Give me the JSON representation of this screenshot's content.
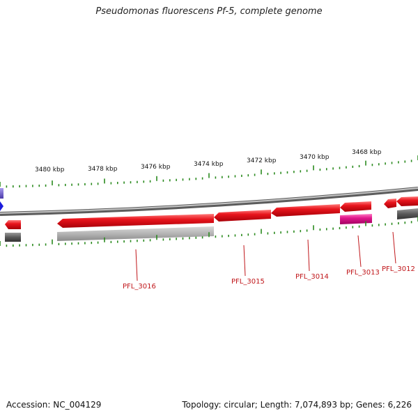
{
  "title": "Pseudomonas fluorescens Pf-5, complete genome",
  "footer": {
    "accession": "Accession: NC_004129",
    "summary": "Topology: circular; Length: 7,074,893 bp; Genes: 6,226"
  },
  "scale_labels": [
    "3480 kbp",
    "3478 kbp",
    "3476 kbp",
    "3474 kbp",
    "3472 kbp",
    "3470 kbp",
    "3468 kbp"
  ],
  "gene_labels": [
    "PFL_3016",
    "PFL_3015",
    "PFL_3014",
    "PFL_3013",
    "PFL_3012"
  ],
  "colors": {
    "tick_mark": "#2a8a1e",
    "backbone": "#8a8a8a",
    "cds_red": "#e8141c",
    "cds_magenta": "#e0188c",
    "gray_feature": "#a8a8a8",
    "dark_feature": "#5a5a5a",
    "purple_feature": "#6a5acd",
    "blue_feature": "#1b1bdc",
    "label_red": "#c0161a"
  }
}
